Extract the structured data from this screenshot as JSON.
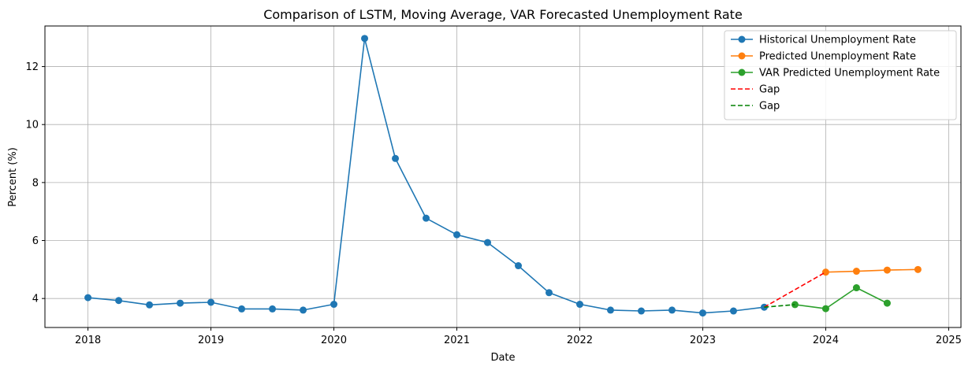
{
  "chart_data": {
    "type": "line",
    "title": "Comparison of LSTM, Moving Average, VAR Forecasted Unemployment Rate",
    "xlabel": "Date",
    "ylabel": "Percent (%)",
    "xlim": [
      2017.65,
      2025.1
    ],
    "ylim": [
      3.0,
      13.4
    ],
    "x_ticks": [
      2018,
      2019,
      2020,
      2021,
      2022,
      2023,
      2024,
      2025
    ],
    "x_tick_labels": [
      "2018",
      "2019",
      "2020",
      "2021",
      "2022",
      "2023",
      "2024",
      "2025"
    ],
    "y_ticks": [
      4,
      6,
      8,
      10,
      12
    ],
    "y_tick_labels": [
      "4",
      "6",
      "8",
      "10",
      "12"
    ],
    "grid": true,
    "legend_position": "top-right",
    "series": [
      {
        "name": "Historical Unemployment Rate",
        "color": "#1f77b4",
        "style": "solid",
        "marker": true,
        "x": [
          2018.0,
          2018.25,
          2018.5,
          2018.75,
          2019.0,
          2019.25,
          2019.5,
          2019.75,
          2020.0,
          2020.25,
          2020.5,
          2020.75,
          2021.0,
          2021.25,
          2021.5,
          2021.75,
          2022.0,
          2022.25,
          2022.5,
          2022.75,
          2023.0,
          2023.25,
          2023.5
        ],
        "y": [
          4.03,
          3.93,
          3.78,
          3.84,
          3.87,
          3.64,
          3.64,
          3.6,
          3.8,
          12.97,
          8.83,
          6.77,
          6.2,
          5.93,
          5.13,
          4.2,
          3.8,
          3.6,
          3.57,
          3.6,
          3.5,
          3.57,
          3.7
        ]
      },
      {
        "name": "Predicted Unemployment Rate",
        "color": "#ff7f0e",
        "style": "solid",
        "marker": true,
        "x": [
          2024.0,
          2024.25,
          2024.5,
          2024.75
        ],
        "y": [
          4.91,
          4.94,
          4.98,
          5.0
        ]
      },
      {
        "name": "VAR Predicted Unemployment Rate",
        "color": "#2ca02c",
        "style": "solid",
        "marker": true,
        "x": [
          2023.75,
          2024.0,
          2024.25,
          2024.5
        ],
        "y": [
          3.79,
          3.65,
          4.37,
          3.84
        ]
      },
      {
        "name": "Gap",
        "color": "#ff0000",
        "style": "dashed",
        "marker": false,
        "x": [
          2023.5,
          2024.0
        ],
        "y": [
          3.7,
          4.91
        ]
      },
      {
        "name": "Gap",
        "color": "#008000",
        "style": "dashed",
        "marker": false,
        "x": [
          2023.5,
          2023.75
        ],
        "y": [
          3.7,
          3.79
        ]
      }
    ]
  }
}
